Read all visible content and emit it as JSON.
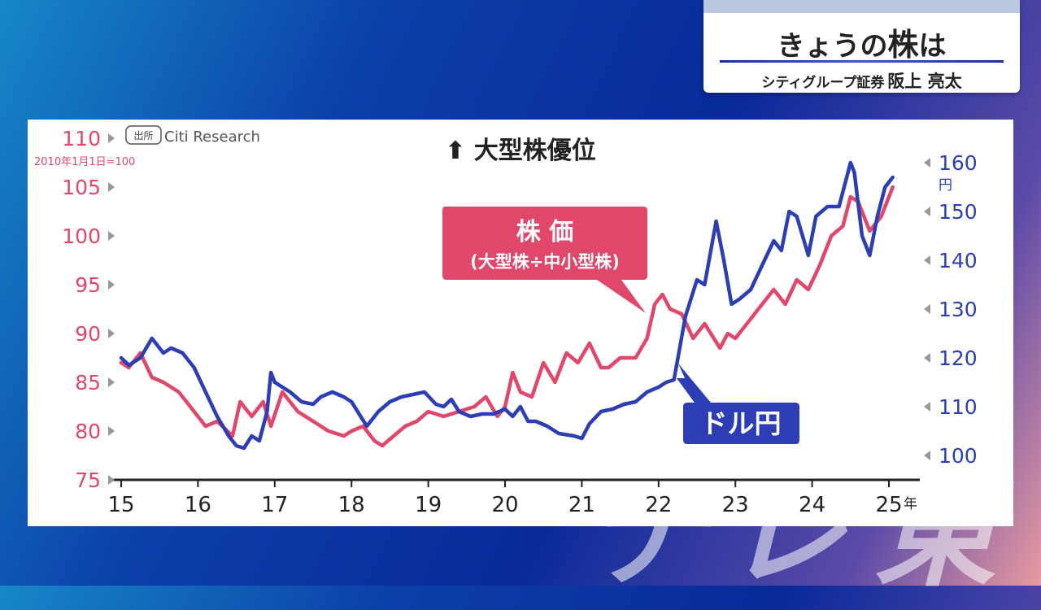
{
  "header": {
    "title_part1": "きょうの",
    "title_part2": "株",
    "title_part3": "は",
    "company": "シティグループ証券",
    "person": "阪上 亮太"
  },
  "background_text": [
    "テ",
    "レ",
    "東"
  ],
  "colors": {
    "stock": "#e0476a",
    "usdjpy": "#2d3db4",
    "axis": "#222222"
  },
  "chart_data": {
    "type": "line",
    "title": "⬆ 大型株優位",
    "source_badge": "出所",
    "source": "Citi Research",
    "base_note": "2010年1月1日=100",
    "x_unit": "年",
    "x_ticks": [
      "15",
      "16",
      "17",
      "18",
      "19",
      "20",
      "21",
      "22",
      "23",
      "24",
      "25"
    ],
    "y_left": {
      "ticks": [
        75,
        80,
        85,
        90,
        95,
        100,
        105,
        110
      ],
      "range": [
        75,
        110
      ]
    },
    "y_right": {
      "ticks": [
        100,
        110,
        120,
        130,
        140,
        150,
        160
      ],
      "range": [
        100,
        160
      ],
      "unit": "円"
    },
    "series": [
      {
        "name": "株価",
        "label_line1": "株 価",
        "label_line2": "(大型株÷中小型株)",
        "axis": "left",
        "color": "#e0476a",
        "x": [
          2015.0,
          2015.1,
          2015.25,
          2015.4,
          2015.55,
          2015.75,
          2015.9,
          2016.1,
          2016.25,
          2016.45,
          2016.55,
          2016.7,
          2016.85,
          2016.95,
          2017.1,
          2017.3,
          2017.5,
          2017.7,
          2017.9,
          2018.0,
          2018.15,
          2018.3,
          2018.4,
          2018.55,
          2018.7,
          2018.85,
          2019.0,
          2019.2,
          2019.4,
          2019.6,
          2019.75,
          2019.9,
          2020.0,
          2020.1,
          2020.2,
          2020.35,
          2020.5,
          2020.65,
          2020.8,
          2020.95,
          2021.1,
          2021.25,
          2021.35,
          2021.5,
          2021.7,
          2021.85,
          2021.95,
          2022.05,
          2022.15,
          2022.3,
          2022.45,
          2022.6,
          2022.8,
          2022.9,
          2023.0,
          2023.15,
          2023.35,
          2023.5,
          2023.65,
          2023.8,
          2023.95,
          2024.1,
          2024.25,
          2024.4,
          2024.5,
          2024.6,
          2024.75,
          2024.9,
          2025.0,
          2025.05
        ],
        "y": [
          87.0,
          86.5,
          88.0,
          85.5,
          85.0,
          84.0,
          82.5,
          80.5,
          81.0,
          79.5,
          83.0,
          81.5,
          83.0,
          80.5,
          84.0,
          82.0,
          81.0,
          80.0,
          79.5,
          80.0,
          80.5,
          79.0,
          78.5,
          79.5,
          80.5,
          81.0,
          82.0,
          81.5,
          82.0,
          82.5,
          83.5,
          81.5,
          82.5,
          86.0,
          84.0,
          83.5,
          87.0,
          85.0,
          88.0,
          87.0,
          89.0,
          86.5,
          86.5,
          87.5,
          87.5,
          89.5,
          93.0,
          94.0,
          92.5,
          92.0,
          89.5,
          91.0,
          88.5,
          90.0,
          89.5,
          91.0,
          93.0,
          94.5,
          93.0,
          95.5,
          94.5,
          97.0,
          100.0,
          101.0,
          104.0,
          103.5,
          100.5,
          102.0,
          104.0,
          105.0
        ]
      },
      {
        "name": "ドル円",
        "label": "ドル円",
        "axis": "right",
        "color": "#2d3db4",
        "x": [
          2015.0,
          2015.1,
          2015.25,
          2015.4,
          2015.55,
          2015.65,
          2015.8,
          2015.95,
          2016.1,
          2016.25,
          2016.4,
          2016.5,
          2016.6,
          2016.7,
          2016.8,
          2016.9,
          2016.95,
          2017.0,
          2017.2,
          2017.35,
          2017.5,
          2017.6,
          2017.75,
          2017.9,
          2018.0,
          2018.1,
          2018.2,
          2018.35,
          2018.5,
          2018.65,
          2018.8,
          2018.95,
          2019.1,
          2019.2,
          2019.3,
          2019.4,
          2019.55,
          2019.7,
          2019.85,
          2020.0,
          2020.1,
          2020.2,
          2020.3,
          2020.4,
          2020.55,
          2020.7,
          2020.9,
          2021.0,
          2021.1,
          2021.25,
          2021.4,
          2021.55,
          2021.7,
          2021.85,
          2022.0,
          2022.1,
          2022.2,
          2022.35,
          2022.5,
          2022.6,
          2022.75,
          2022.85,
          2022.95,
          2023.05,
          2023.2,
          2023.35,
          2023.5,
          2023.6,
          2023.7,
          2023.8,
          2023.95,
          2024.05,
          2024.2,
          2024.35,
          2024.45,
          2024.5,
          2024.55,
          2024.65,
          2024.75,
          2024.85,
          2024.95,
          2025.0,
          2025.05
        ],
        "y": [
          120.0,
          118.5,
          120.0,
          124.0,
          121.0,
          122.0,
          121.0,
          118.0,
          113.0,
          108.0,
          104.0,
          102.0,
          101.5,
          104.0,
          103.0,
          109.0,
          117.0,
          115.0,
          113.0,
          111.0,
          110.5,
          112.0,
          113.0,
          112.0,
          111.0,
          108.5,
          106.0,
          109.0,
          111.0,
          112.0,
          112.5,
          113.0,
          110.5,
          110.0,
          111.5,
          109.0,
          108.0,
          108.5,
          108.5,
          109.5,
          108.0,
          110.0,
          107.0,
          107.0,
          106.0,
          104.5,
          104.0,
          103.5,
          106.5,
          109.0,
          109.5,
          110.5,
          111.0,
          113.0,
          114.0,
          115.0,
          115.5,
          128.5,
          136.0,
          135.0,
          148.0,
          140.0,
          131.0,
          132.0,
          134.0,
          139.0,
          144.0,
          142.0,
          150.0,
          149.0,
          141.0,
          149.0,
          151.0,
          151.0,
          157.0,
          160.0,
          158.0,
          145.0,
          141.0,
          149.0,
          155.0,
          156.0,
          157.0
        ]
      }
    ]
  }
}
